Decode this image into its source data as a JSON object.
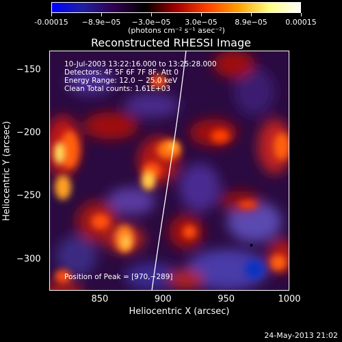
{
  "colorbar": {
    "ticks": [
      "-0.00015",
      "−8.9e−05",
      "−3.0e−05",
      "3.0e−05",
      "8.9e−05",
      "0.00015"
    ],
    "units": "(photons cm⁻² s⁻¹ asec⁻²)",
    "colors": [
      "#0000ff",
      "#2020a0",
      "#300050",
      "#000000",
      "#a00000",
      "#ff4000",
      "#ffa000",
      "#ffff80",
      "#ffffff"
    ]
  },
  "plot": {
    "title": "Reconstructed RHESSI Image",
    "info_lines": [
      "10-Jul-2003 13:22:16.000 to 13:25:28.000",
      "Detectors: 4F 5F 6F 7F 8F, Att 0",
      "Energy Range: 12.0 − 25.0 keV",
      "Clean     Total counts: 1.61E+03"
    ],
    "peak_text": "Position of Peak = [970,−289]",
    "xlabel": "Heliocentric X (arcsec)",
    "ylabel": "Heliocentric Y (arcsec)",
    "xticks": [
      "850",
      "900",
      "950",
      "1000"
    ],
    "yticks": [
      "−150",
      "−200",
      "−250",
      "−300"
    ],
    "xrange": [
      810,
      1000
    ],
    "yrange": [
      -325,
      -135
    ],
    "peak": {
      "x": 970,
      "y": -289
    }
  },
  "footer": {
    "date": "24-May-2013 21:02"
  }
}
